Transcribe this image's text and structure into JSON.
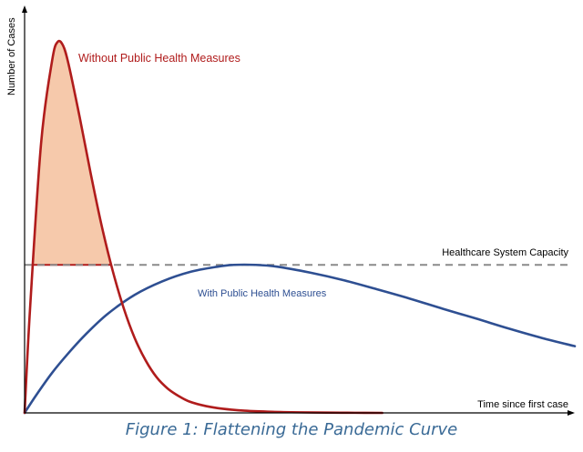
{
  "chart_data": {
    "type": "area",
    "title": "",
    "xlabel": "Time since first case",
    "ylabel": "Number of Cases",
    "xlim": [
      0,
      100
    ],
    "ylim": [
      0,
      100
    ],
    "grid": false,
    "legend": "none",
    "capacity": {
      "label": "Healthcare System Capacity",
      "value": 39.5,
      "color": "#8a8a8a"
    },
    "series": [
      {
        "name": "Without Public Health Measures",
        "color": "#b01c1c",
        "fill_above_capacity": "#f6c9ab",
        "x": [
          0,
          1,
          3,
          5,
          6,
          7,
          8,
          10,
          12,
          14,
          16,
          18,
          20,
          22,
          24,
          26,
          28,
          30,
          33,
          36,
          40,
          45,
          50,
          55,
          60,
          65
        ],
        "y": [
          0,
          28,
          72,
          94,
          99,
          98,
          93,
          79,
          64,
          50,
          38,
          28,
          20,
          14,
          9.5,
          6.5,
          4.5,
          3,
          1.8,
          1.1,
          0.6,
          0.3,
          0.15,
          0.08,
          0.03,
          0
        ]
      },
      {
        "name": "With Public Health Measures",
        "color": "#2e4f92",
        "x": [
          0,
          2,
          5,
          8,
          11,
          15,
          20,
          25,
          30,
          35,
          38,
          42,
          46,
          52,
          58,
          64,
          70,
          76,
          82,
          88,
          94,
          100
        ],
        "y": [
          0,
          4.5,
          10.7,
          16,
          20.8,
          26.3,
          31.5,
          35.1,
          37.6,
          39,
          39.5,
          39.5,
          39,
          37.4,
          35.4,
          33,
          30.5,
          27.8,
          25.2,
          22.5,
          20,
          17.8
        ]
      }
    ]
  },
  "caption": "Figure 1: Flattening the Pandemic Curve"
}
